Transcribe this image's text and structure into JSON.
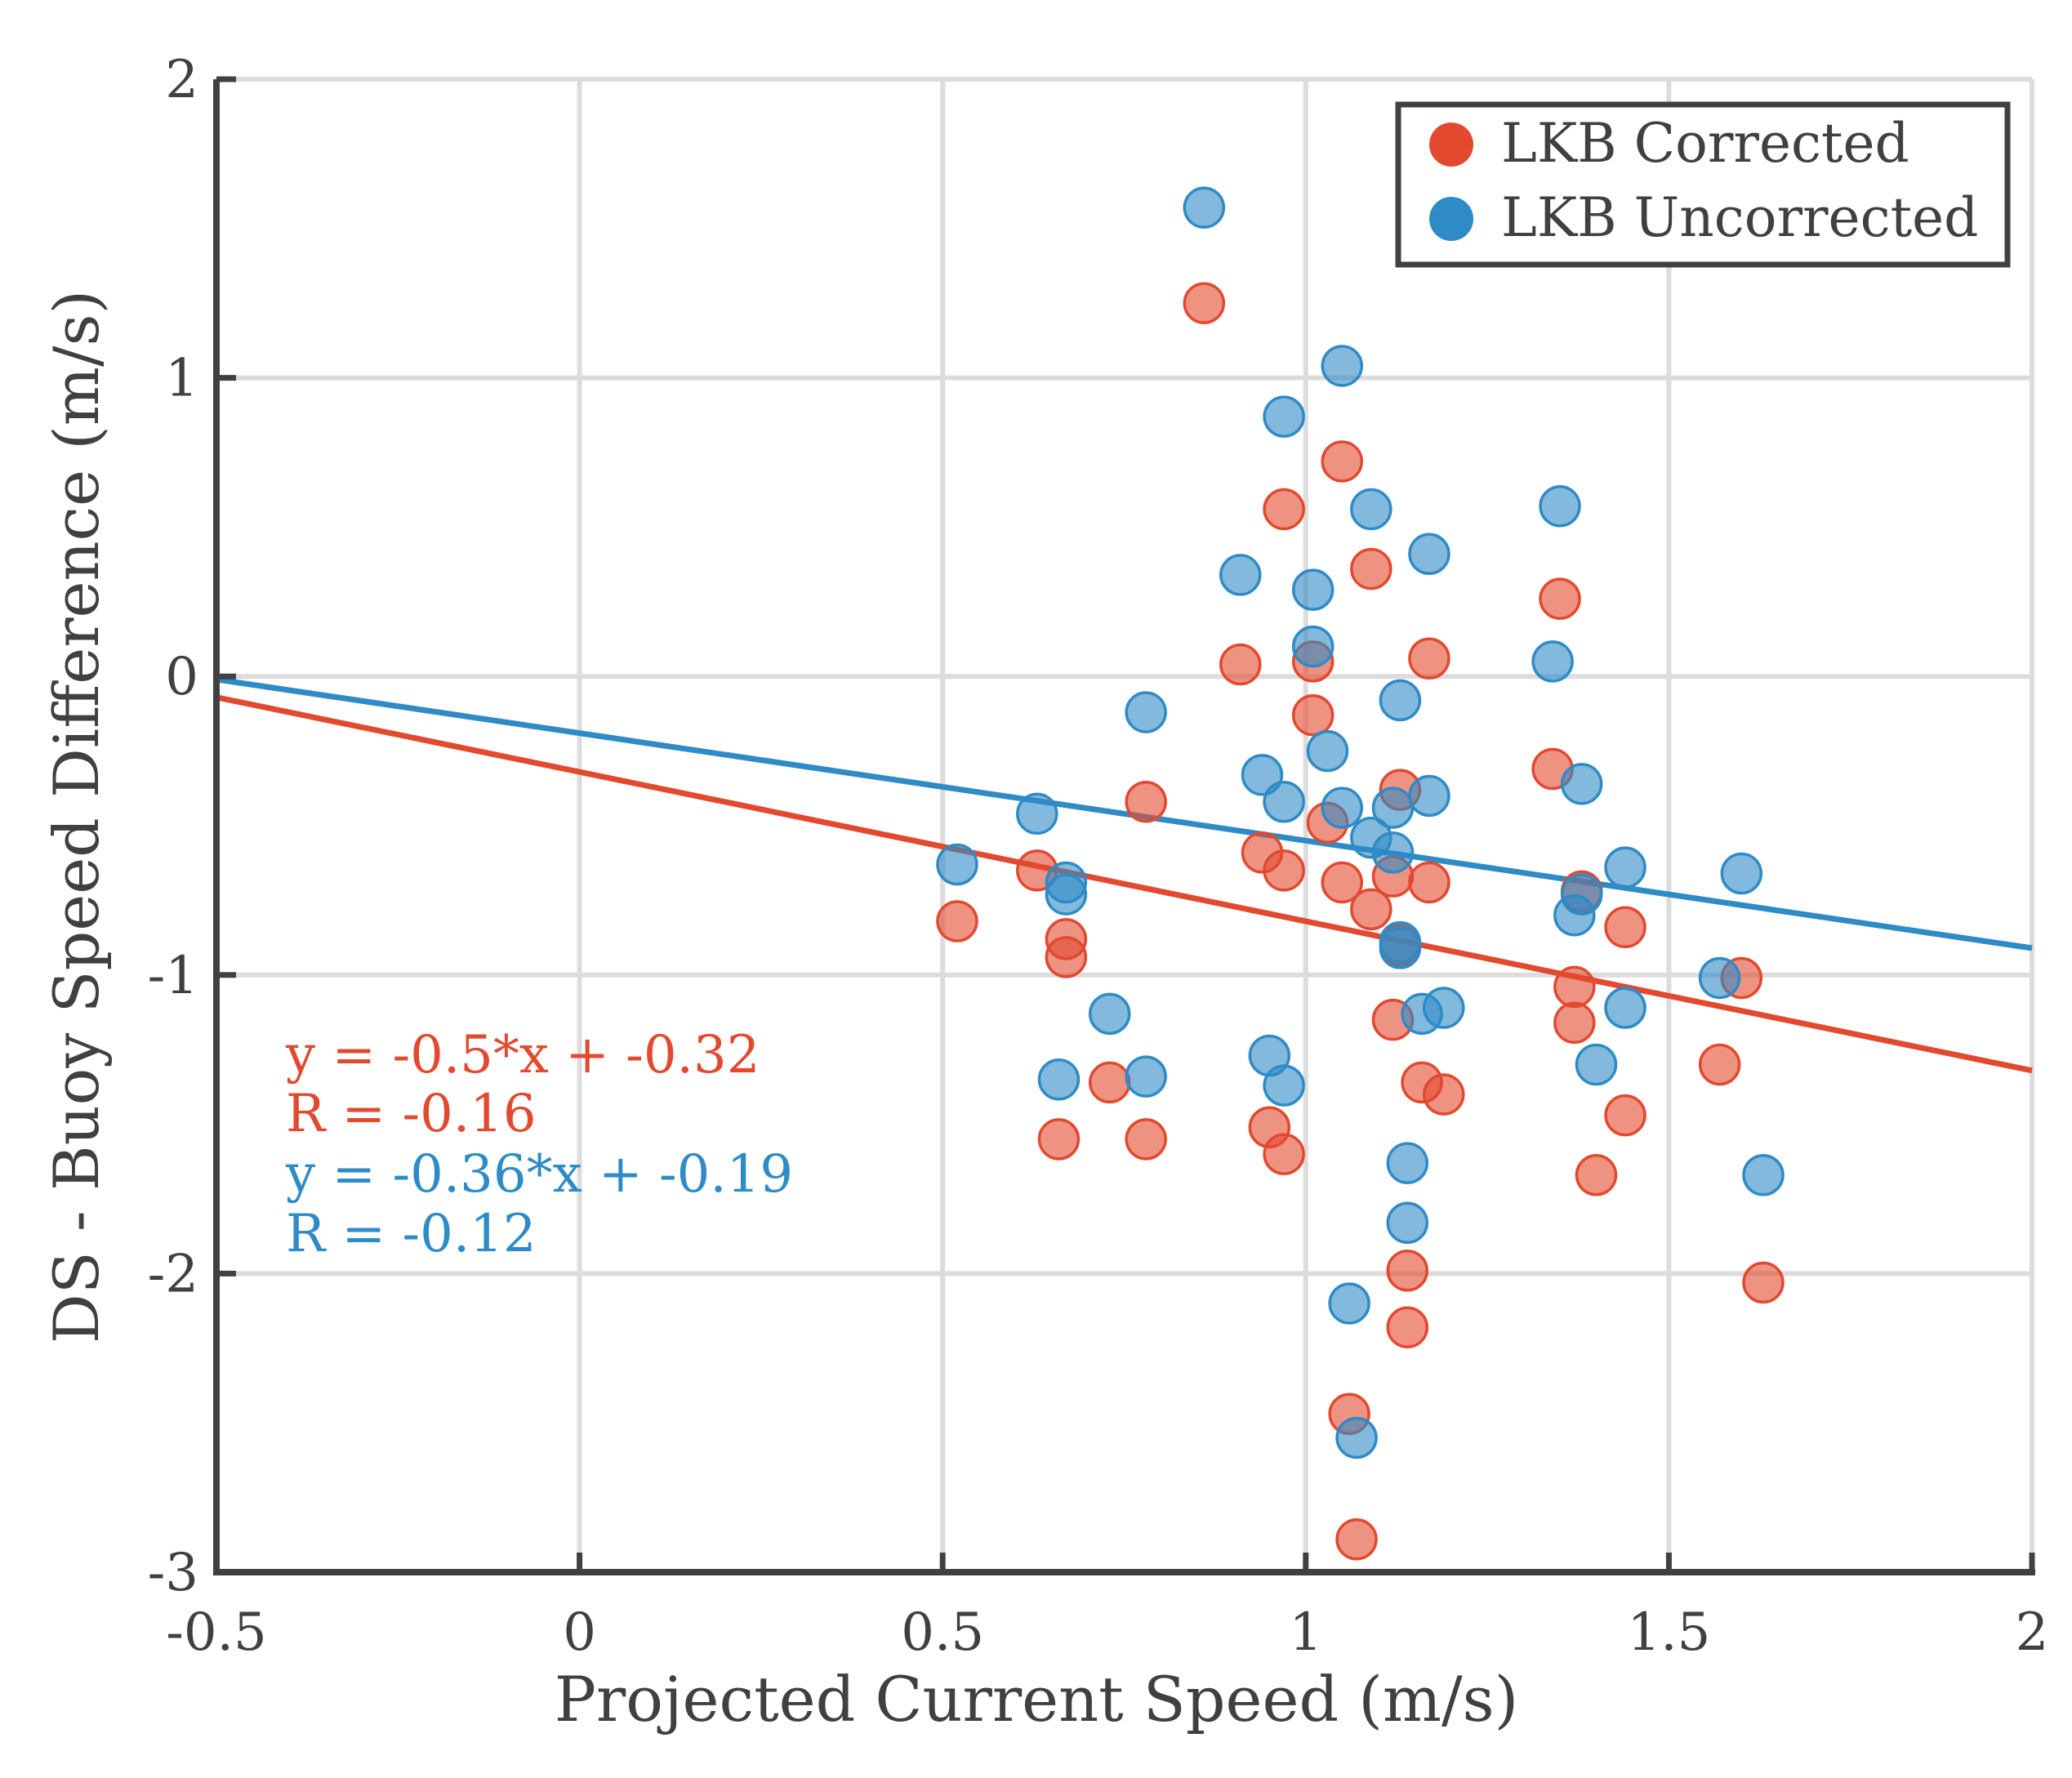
{
  "chart_data": {
    "type": "scatter",
    "xlabel": "Projected Current Speed (m/s)",
    "ylabel": "DS - Buoy Speed Difference (m/s)",
    "xlim": [
      -0.5,
      2
    ],
    "ylim": [
      -3,
      2
    ],
    "xticks": [
      "-0.5",
      "0",
      "0.5",
      "1",
      "1.5",
      "2"
    ],
    "yticks": [
      "2",
      "1",
      "0",
      "-1",
      "-2",
      "-3"
    ],
    "xtick_values": [
      -0.5,
      0,
      0.5,
      1,
      1.5,
      2
    ],
    "ytick_values": [
      2,
      1,
      0,
      -1,
      -2,
      -3
    ],
    "grid": true,
    "legend_position": "top-right",
    "series": [
      {
        "name": "LKB Corrected",
        "color": "#e2492f",
        "points": [
          [
            0.86,
            1.25
          ],
          [
            1.05,
            0.72
          ],
          [
            0.97,
            0.56
          ],
          [
            1.09,
            0.36
          ],
          [
            1.35,
            0.26
          ],
          [
            0.91,
            0.04
          ],
          [
            1.01,
            0.05
          ],
          [
            1.17,
            0.06
          ],
          [
            1.01,
            -0.13
          ],
          [
            1.34,
            -0.31
          ],
          [
            1.13,
            -0.38
          ],
          [
            0.78,
            -0.42
          ],
          [
            1.03,
            -0.49
          ],
          [
            0.94,
            -0.59
          ],
          [
            0.97,
            -0.65
          ],
          [
            0.63,
            -0.65
          ],
          [
            1.05,
            -0.69
          ],
          [
            1.12,
            -0.67
          ],
          [
            1.17,
            -0.69
          ],
          [
            1.38,
            -0.72
          ],
          [
            0.52,
            -0.82
          ],
          [
            1.09,
            -0.78
          ],
          [
            1.44,
            -0.84
          ],
          [
            0.67,
            -0.88
          ],
          [
            0.67,
            -0.94
          ],
          [
            1.13,
            -0.9
          ],
          [
            1.6,
            -1.01
          ],
          [
            1.37,
            -1.04
          ],
          [
            1.12,
            -1.15
          ],
          [
            1.37,
            -1.16
          ],
          [
            0.73,
            -1.36
          ],
          [
            1.57,
            -1.3
          ],
          [
            1.16,
            -1.36
          ],
          [
            1.19,
            -1.4
          ],
          [
            1.44,
            -1.47
          ],
          [
            0.95,
            -1.51
          ],
          [
            0.66,
            -1.55
          ],
          [
            0.78,
            -1.55
          ],
          [
            0.97,
            -1.6
          ],
          [
            1.4,
            -1.67
          ],
          [
            1.14,
            -1.99
          ],
          [
            1.63,
            -2.03
          ],
          [
            1.14,
            -2.18
          ],
          [
            1.06,
            -2.47
          ],
          [
            1.07,
            -2.89
          ]
        ]
      },
      {
        "name": "LKB Uncorrected",
        "color": "#2f8bc6",
        "points": [
          [
            0.86,
            1.57
          ],
          [
            1.05,
            1.04
          ],
          [
            0.97,
            0.87
          ],
          [
            1.09,
            0.56
          ],
          [
            1.35,
            0.57
          ],
          [
            1.17,
            0.41
          ],
          [
            0.91,
            0.34
          ],
          [
            1.01,
            0.29
          ],
          [
            1.01,
            0.1
          ],
          [
            1.34,
            0.05
          ],
          [
            0.78,
            -0.12
          ],
          [
            1.13,
            -0.08
          ],
          [
            1.03,
            -0.25
          ],
          [
            0.94,
            -0.33
          ],
          [
            1.38,
            -0.36
          ],
          [
            0.97,
            -0.42
          ],
          [
            1.17,
            -0.4
          ],
          [
            1.05,
            -0.44
          ],
          [
            1.12,
            -0.44
          ],
          [
            0.63,
            -0.46
          ],
          [
            1.09,
            -0.54
          ],
          [
            1.12,
            -0.59
          ],
          [
            0.52,
            -0.63
          ],
          [
            1.44,
            -0.64
          ],
          [
            1.6,
            -0.66
          ],
          [
            0.67,
            -0.69
          ],
          [
            0.67,
            -0.73
          ],
          [
            1.38,
            -0.73
          ],
          [
            1.37,
            -0.8
          ],
          [
            1.13,
            -0.89
          ],
          [
            1.13,
            -0.91
          ],
          [
            1.57,
            -1.01
          ],
          [
            0.73,
            -1.13
          ],
          [
            1.19,
            -1.11
          ],
          [
            1.16,
            -1.13
          ],
          [
            1.44,
            -1.11
          ],
          [
            0.95,
            -1.27
          ],
          [
            1.4,
            -1.3
          ],
          [
            0.66,
            -1.35
          ],
          [
            0.78,
            -1.34
          ],
          [
            0.97,
            -1.37
          ],
          [
            1.14,
            -1.63
          ],
          [
            1.63,
            -1.67
          ],
          [
            1.14,
            -1.83
          ],
          [
            1.06,
            -2.1
          ],
          [
            1.07,
            -2.55
          ]
        ]
      }
    ],
    "fit_lines": [
      {
        "series": "LKB Corrected",
        "color": "#e2492f",
        "slope": -0.5,
        "intercept": -0.32
      },
      {
        "series": "LKB Uncorrected",
        "color": "#2f8bc6",
        "slope": -0.36,
        "intercept": -0.19
      }
    ],
    "annotations": [
      {
        "text": "y = -0.5*x + -0.32",
        "color": "#e2492f"
      },
      {
        "text": "R = -0.16",
        "color": "#e2492f"
      },
      {
        "text": "y = -0.36*x + -0.19",
        "color": "#2f8bc6"
      },
      {
        "text": "R = -0.12",
        "color": "#2f8bc6"
      }
    ]
  }
}
